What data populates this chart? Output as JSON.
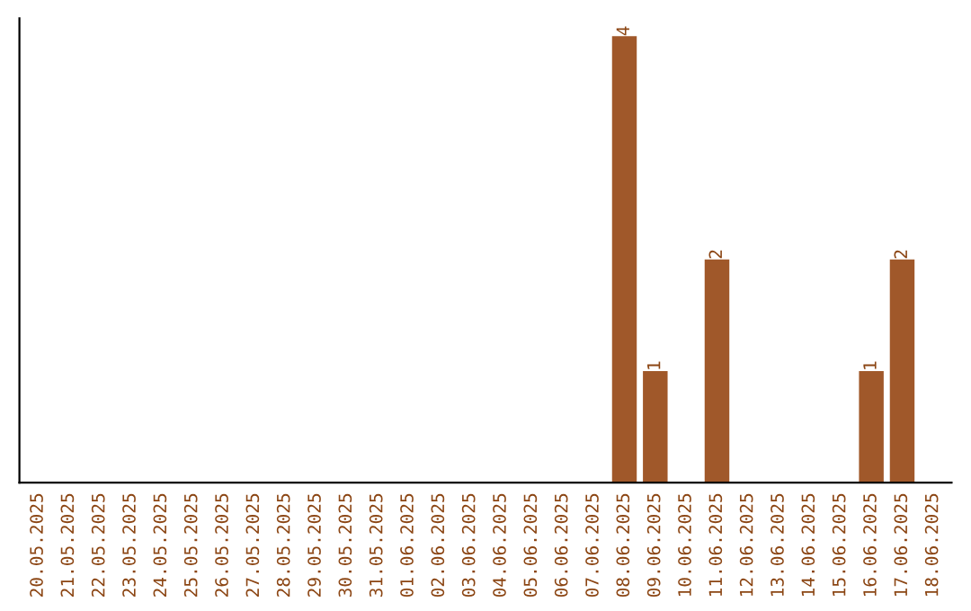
{
  "chart_data": {
    "type": "bar",
    "categories": [
      "20.05.2025",
      "21.05.2025",
      "22.05.2025",
      "23.05.2025",
      "24.05.2025",
      "25.05.2025",
      "26.05.2025",
      "27.05.2025",
      "28.05.2025",
      "29.05.2025",
      "30.05.2025",
      "31.05.2025",
      "01.06.2025",
      "02.06.2025",
      "03.06.2025",
      "04.06.2025",
      "05.06.2025",
      "06.06.2025",
      "07.06.2025",
      "08.06.2025",
      "09.06.2025",
      "10.06.2025",
      "11.06.2025",
      "12.06.2025",
      "13.06.2025",
      "14.06.2025",
      "15.06.2025",
      "16.06.2025",
      "17.06.2025",
      "18.06.2025"
    ],
    "values": [
      null,
      null,
      null,
      null,
      null,
      null,
      null,
      null,
      null,
      null,
      null,
      null,
      null,
      null,
      null,
      null,
      null,
      null,
      null,
      4,
      1,
      null,
      2,
      null,
      null,
      null,
      null,
      1,
      2,
      null
    ],
    "color": "#a0582a",
    "data_labels": true,
    "grid": false,
    "tick_labels": "x"
  }
}
